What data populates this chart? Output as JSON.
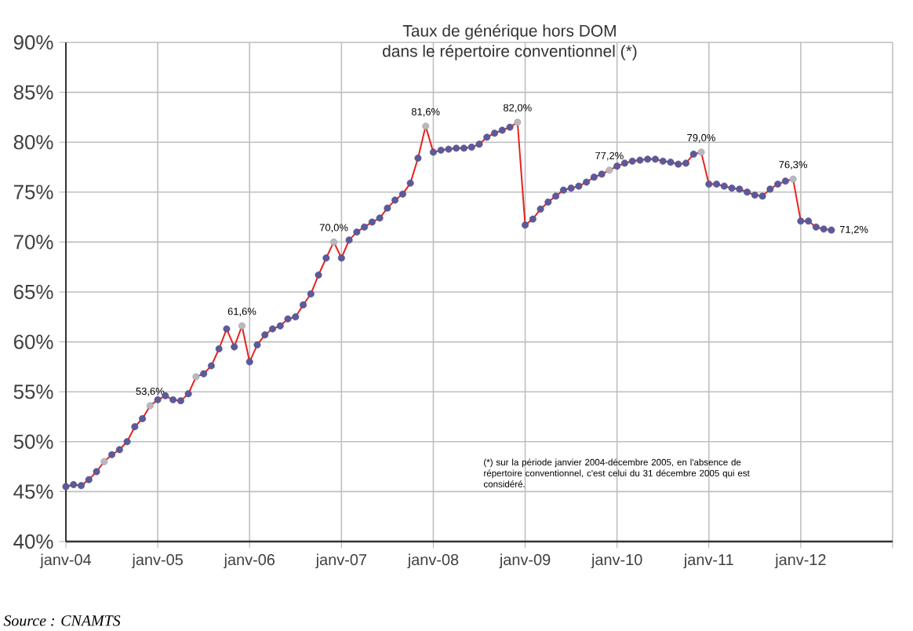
{
  "chart_data": {
    "type": "line",
    "title": "Taux de générique hors DOM",
    "subtitle": "dans le répertoire conventionnel (*)",
    "x": [
      "2004-01",
      "2004-02",
      "2004-03",
      "2004-04",
      "2004-05",
      "2004-06",
      "2004-07",
      "2004-08",
      "2004-09",
      "2004-10",
      "2004-11",
      "2004-12",
      "2005-01",
      "2005-02",
      "2005-03",
      "2005-04",
      "2005-05",
      "2005-06",
      "2005-07",
      "2005-08",
      "2005-09",
      "2005-10",
      "2005-11",
      "2005-12",
      "2006-01",
      "2006-02",
      "2006-03",
      "2006-04",
      "2006-05",
      "2006-06",
      "2006-07",
      "2006-08",
      "2006-09",
      "2006-10",
      "2006-11",
      "2006-12",
      "2007-01",
      "2007-02",
      "2007-03",
      "2007-04",
      "2007-05",
      "2007-06",
      "2007-07",
      "2007-08",
      "2007-09",
      "2007-10",
      "2007-11",
      "2007-12",
      "2008-01",
      "2008-02",
      "2008-03",
      "2008-04",
      "2008-05",
      "2008-06",
      "2008-07",
      "2008-08",
      "2008-09",
      "2008-10",
      "2008-11",
      "2008-12",
      "2009-01",
      "2009-02",
      "2009-03",
      "2009-04",
      "2009-05",
      "2009-06",
      "2009-07",
      "2009-08",
      "2009-09",
      "2009-10",
      "2009-11",
      "2009-12",
      "2010-01",
      "2010-02",
      "2010-03",
      "2010-04",
      "2010-05",
      "2010-06",
      "2010-07",
      "2010-08",
      "2010-09",
      "2010-10",
      "2010-11",
      "2010-12",
      "2011-01",
      "2011-02",
      "2011-03",
      "2011-04",
      "2011-05",
      "2011-06",
      "2011-07",
      "2011-08",
      "2011-09",
      "2011-10",
      "2011-11",
      "2011-12",
      "2012-01",
      "2012-02",
      "2012-03",
      "2012-04",
      "2012-05"
    ],
    "series": [
      {
        "color": "#e8221c",
        "values": [
          45.5,
          45.7,
          45.6,
          46.2,
          47.0,
          48.0,
          48.7,
          49.2,
          50.0,
          51.5,
          52.3,
          53.6,
          54.2,
          54.6,
          54.2,
          54.1,
          54.8,
          56.5,
          56.8,
          57.6,
          59.3,
          61.3,
          59.5,
          61.6,
          58.0,
          59.7,
          60.7,
          61.3,
          61.6,
          62.3,
          62.5,
          63.7,
          64.8,
          66.7,
          68.4,
          70.0,
          68.4,
          70.2,
          71.0,
          71.5,
          72.0,
          72.4,
          73.4,
          74.2,
          74.8,
          75.9,
          78.4,
          81.6,
          79.0,
          79.2,
          79.3,
          79.4,
          79.4,
          79.5,
          79.8,
          80.5,
          80.9,
          81.2,
          81.5,
          82.0,
          71.7,
          72.3,
          73.3,
          74.0,
          74.6,
          75.2,
          75.4,
          75.6,
          76.0,
          76.5,
          76.8,
          77.2,
          77.6,
          77.9,
          78.1,
          78.2,
          78.3,
          78.3,
          78.1,
          78.0,
          77.8,
          77.9,
          78.8,
          79.0,
          75.8,
          75.8,
          75.6,
          75.4,
          75.3,
          75.0,
          74.7,
          74.6,
          75.3,
          75.8,
          76.1,
          76.3,
          72.1,
          72.1,
          71.5,
          71.3,
          71.2
        ],
        "colors": [
          "#5b5a9a",
          "#5b5a9a",
          "#5b5a9a",
          "#5b5a9a",
          "#5b5a9a",
          "#b8b8c0",
          "#5b5a9a",
          "#5b5a9a",
          "#5b5a9a",
          "#5b5a9a",
          "#5b5a9a",
          "#b8b8c0",
          "#5b5a9a",
          "#5b5a9a",
          "#5b5a9a",
          "#5b5a9a",
          "#5b5a9a",
          "#b8b8c0",
          "#5b5a9a",
          "#5b5a9a",
          "#5b5a9a",
          "#5b5a9a",
          "#5b5a9a",
          "#b8b8c0",
          "#5b5a9a",
          "#5b5a9a",
          "#5b5a9a",
          "#5b5a9a",
          "#5b5a9a",
          "#5b5a9a",
          "#5b5a9a",
          "#5b5a9a",
          "#5b5a9a",
          "#5b5a9a",
          "#5b5a9a",
          "#b8b8c0",
          "#5b5a9a",
          "#5b5a9a",
          "#5b5a9a",
          "#5b5a9a",
          "#5b5a9a",
          "#5b5a9a",
          "#5b5a9a",
          "#5b5a9a",
          "#5b5a9a",
          "#5b5a9a",
          "#5b5a9a",
          "#b8b8c0",
          "#5b5a9a",
          "#5b5a9a",
          "#5b5a9a",
          "#5b5a9a",
          "#5b5a9a",
          "#5b5a9a",
          "#5b5a9a",
          "#5b5a9a",
          "#5b5a9a",
          "#5b5a9a",
          "#5b5a9a",
          "#b8b8c0",
          "#5b5a9a",
          "#5b5a9a",
          "#5b5a9a",
          "#5b5a9a",
          "#5b5a9a",
          "#5b5a9a",
          "#5b5a9a",
          "#5b5a9a",
          "#5b5a9a",
          "#5b5a9a",
          "#5b5a9a",
          "#b8b8c0",
          "#5b5a9a",
          "#5b5a9a",
          "#5b5a9a",
          "#5b5a9a",
          "#5b5a9a",
          "#5b5a9a",
          "#5b5a9a",
          "#5b5a9a",
          "#5b5a9a",
          "#5b5a9a",
          "#5b5a9a",
          "#b8b8c0",
          "#5b5a9a",
          "#5b5a9a",
          "#5b5a9a",
          "#5b5a9a",
          "#5b5a9a",
          "#5b5a9a",
          "#5b5a9a",
          "#5b5a9a",
          "#5b5a9a",
          "#5b5a9a",
          "#5b5a9a",
          "#b8b8c0",
          "#5b5a9a",
          "#5b5a9a",
          "#5b5a9a",
          "#5b5a9a",
          "#5b5a9a"
        ]
      }
    ],
    "marker": "circle",
    "grid": true,
    "xlim": [
      "2004-01",
      "2013-01"
    ],
    "xticks": [
      {
        "value": "2004-01",
        "label": "janv-04"
      },
      {
        "value": "2005-01",
        "label": "janv-05"
      },
      {
        "value": "2006-01",
        "label": "janv-06"
      },
      {
        "value": "2007-01",
        "label": "janv-07"
      },
      {
        "value": "2008-01",
        "label": "janv-08"
      },
      {
        "value": "2009-01",
        "label": "janv-09"
      },
      {
        "value": "2010-01",
        "label": "janv-10"
      },
      {
        "value": "2011-01",
        "label": "janv-11"
      },
      {
        "value": "2012-01",
        "label": "janv-12"
      },
      {
        "value": "2013-01",
        "label": null
      }
    ],
    "ylim": [
      40,
      90
    ],
    "yticks": [
      {
        "value": 40,
        "label": "40%"
      },
      {
        "value": 45,
        "label": "45%"
      },
      {
        "value": 50,
        "label": "50%"
      },
      {
        "value": 55,
        "label": "55%"
      },
      {
        "value": 60,
        "label": "60%"
      },
      {
        "value": 65,
        "label": "65%"
      },
      {
        "value": 70,
        "label": "70%"
      },
      {
        "value": 75,
        "label": "75%"
      },
      {
        "value": 80,
        "label": "80%"
      },
      {
        "value": 85,
        "label": "85%"
      },
      {
        "value": 90,
        "label": "90%"
      }
    ],
    "annotations": [
      {
        "text": "53,6%",
        "x": "2004-12",
        "y": 53.6
      },
      {
        "text": "61,6%",
        "x": "2005-12",
        "y": 61.6
      },
      {
        "text": "70,0%",
        "x": "2006-12",
        "y": 70.0
      },
      {
        "text": "81,6%",
        "x": "2007-12",
        "y": 81.6
      },
      {
        "text": "82,0%",
        "x": "2008-12",
        "y": 82.0
      },
      {
        "text": "77,2%",
        "x": "2009-12",
        "y": 77.2
      },
      {
        "text": "79,0%",
        "x": "2010-12",
        "y": 79.0
      },
      {
        "text": "76,3%",
        "x": "2011-12",
        "y": 76.3
      },
      {
        "text": "71,2%",
        "x": "2012-05",
        "y": 71.2
      },
      "(*) sur la période janvier 2004-décembre 2005, en l'absence de répertoire conventionnel, c'est celui du 31 décembre 2005 qui est considéré.",
      "Source :  CNAMTS"
    ]
  }
}
